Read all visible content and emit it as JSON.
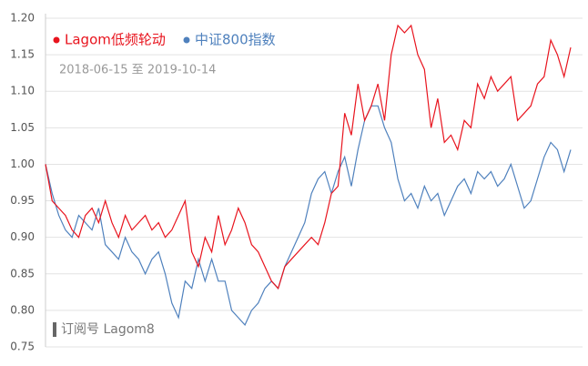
{
  "chart_data": {
    "type": "line",
    "subtitle": "2018-06-15 至 2019-10-14",
    "watermark": "订阅号 Lagom8",
    "ylim": [
      0.75,
      1.2
    ],
    "yticks": [
      {
        "value": 1.2,
        "label": "1.20"
      },
      1.15,
      {
        "value": 1.1,
        "label": "1.10"
      },
      1.05,
      {
        "value": 1.0,
        "label": "1.00"
      },
      0.95,
      {
        "value": 0.9,
        "label": "0.90"
      },
      0.85,
      {
        "value": 0.8,
        "label": "0.80"
      },
      0.75
    ],
    "grid": true,
    "series": [
      {
        "name": "Lagom低频轮动",
        "color": "#e8141e",
        "values": [
          1.0,
          0.95,
          0.94,
          0.93,
          0.91,
          0.9,
          0.93,
          0.94,
          0.92,
          0.95,
          0.92,
          0.9,
          0.93,
          0.91,
          0.92,
          0.93,
          0.91,
          0.92,
          0.9,
          0.91,
          0.93,
          0.95,
          0.88,
          0.86,
          0.9,
          0.88,
          0.93,
          0.89,
          0.91,
          0.94,
          0.92,
          0.89,
          0.88,
          0.86,
          0.84,
          0.83,
          0.86,
          0.87,
          0.88,
          0.89,
          0.9,
          0.89,
          0.92,
          0.96,
          0.97,
          1.07,
          1.04,
          1.11,
          1.06,
          1.08,
          1.11,
          1.06,
          1.15,
          1.19,
          1.18,
          1.19,
          1.15,
          1.13,
          1.05,
          1.09,
          1.03,
          1.04,
          1.02,
          1.06,
          1.05,
          1.11,
          1.09,
          1.12,
          1.1,
          1.11,
          1.12,
          1.06,
          1.07,
          1.08,
          1.11,
          1.12,
          1.17,
          1.15,
          1.12,
          1.16
        ]
      },
      {
        "name": "中证800指数",
        "color": "#4f81bd",
        "values": [
          1.0,
          0.96,
          0.93,
          0.91,
          0.9,
          0.93,
          0.92,
          0.91,
          0.94,
          0.89,
          0.88,
          0.87,
          0.9,
          0.88,
          0.87,
          0.85,
          0.87,
          0.88,
          0.85,
          0.81,
          0.79,
          0.84,
          0.83,
          0.87,
          0.84,
          0.87,
          0.84,
          0.84,
          0.8,
          0.79,
          0.78,
          0.8,
          0.81,
          0.83,
          0.84,
          0.83,
          0.86,
          0.88,
          0.9,
          0.92,
          0.96,
          0.98,
          0.99,
          0.96,
          0.99,
          1.01,
          0.97,
          1.02,
          1.06,
          1.08,
          1.08,
          1.05,
          1.03,
          0.98,
          0.95,
          0.96,
          0.94,
          0.97,
          0.95,
          0.96,
          0.93,
          0.95,
          0.97,
          0.98,
          0.96,
          0.99,
          0.98,
          0.99,
          0.97,
          0.98,
          1.0,
          0.97,
          0.94,
          0.95,
          0.98,
          1.01,
          1.03,
          1.02,
          0.99,
          1.02
        ]
      }
    ]
  }
}
